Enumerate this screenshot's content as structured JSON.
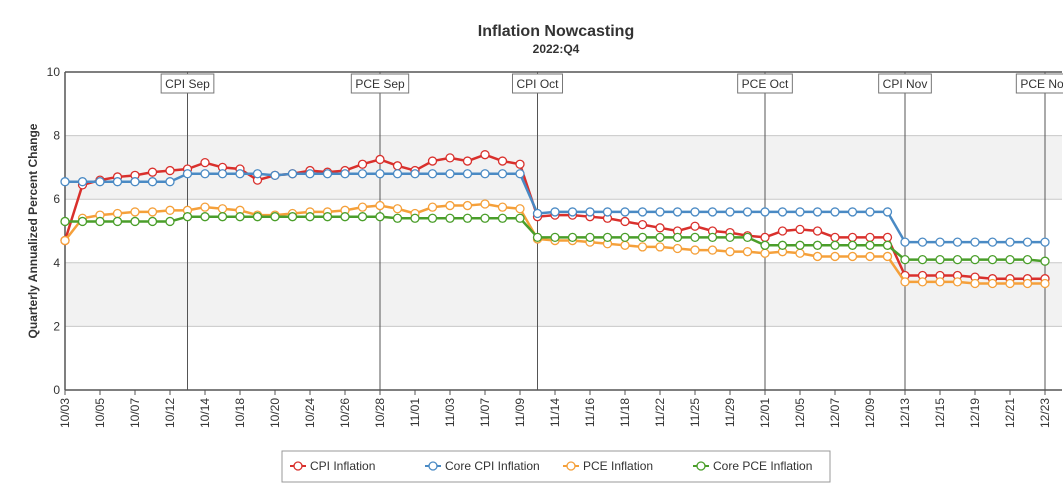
{
  "chart_data": {
    "type": "line",
    "title": "Inflation Nowcasting",
    "subtitle": "2022:Q4",
    "y_label": "Quarterly Annualized Percent Change",
    "categories": [
      "10/03",
      null,
      "10/05",
      null,
      "10/07",
      null,
      "10/12",
      null,
      "10/14",
      null,
      "10/18",
      null,
      "10/20",
      null,
      "10/24",
      null,
      "10/26",
      null,
      "10/28",
      null,
      "11/01",
      null,
      "11/03",
      null,
      "11/07",
      null,
      "11/09",
      null,
      "11/14",
      null,
      "11/16",
      null,
      "11/18",
      null,
      "11/22",
      null,
      "11/25",
      null,
      "11/29",
      null,
      "12/01",
      null,
      "12/05",
      null,
      "12/07",
      null,
      "12/09",
      null,
      "12/13",
      null,
      "12/15",
      null,
      "12/19",
      null,
      "12/21",
      null,
      "12/23"
    ],
    "series": [
      {
        "name": "CPI Inflation",
        "color": "#d9302c",
        "values": [
          4.7,
          6.45,
          6.6,
          6.7,
          6.75,
          6.85,
          6.9,
          6.95,
          7.15,
          7.0,
          6.95,
          6.6,
          6.75,
          6.8,
          6.9,
          6.85,
          6.9,
          7.1,
          7.25,
          7.05,
          6.9,
          7.2,
          7.3,
          7.2,
          7.4,
          7.2,
          7.1,
          5.45,
          5.5,
          5.5,
          5.45,
          5.4,
          5.3,
          5.2,
          5.1,
          5.0,
          5.15,
          5.0,
          4.95,
          4.85,
          4.8,
          5.0,
          5.05,
          5.0,
          4.8,
          4.8,
          4.8,
          4.8,
          3.6,
          3.6,
          3.6,
          3.6,
          3.55,
          3.5,
          3.5,
          3.5,
          3.5
        ]
      },
      {
        "name": "Core CPI Inflation",
        "color": "#4a8ac4",
        "values": [
          6.55,
          6.55,
          6.55,
          6.55,
          6.55,
          6.55,
          6.55,
          6.8,
          6.8,
          6.8,
          6.8,
          6.8,
          6.75,
          6.8,
          6.8,
          6.8,
          6.8,
          6.8,
          6.8,
          6.8,
          6.8,
          6.8,
          6.8,
          6.8,
          6.8,
          6.8,
          6.8,
          5.55,
          5.6,
          5.6,
          5.6,
          5.6,
          5.6,
          5.6,
          5.6,
          5.6,
          5.6,
          5.6,
          5.6,
          5.6,
          5.6,
          5.6,
          5.6,
          5.6,
          5.6,
          5.6,
          5.6,
          5.6,
          4.65,
          4.65,
          4.65,
          4.65,
          4.65,
          4.65,
          4.65,
          4.65,
          4.65
        ]
      },
      {
        "name": "PCE Inflation",
        "color": "#f5a03a",
        "values": [
          4.7,
          5.4,
          5.5,
          5.55,
          5.6,
          5.6,
          5.65,
          5.65,
          5.75,
          5.7,
          5.65,
          5.5,
          5.5,
          5.55,
          5.6,
          5.6,
          5.65,
          5.75,
          5.8,
          5.7,
          5.55,
          5.75,
          5.8,
          5.8,
          5.85,
          5.75,
          5.7,
          4.75,
          4.7,
          4.7,
          4.65,
          4.6,
          4.55,
          4.5,
          4.5,
          4.45,
          4.4,
          4.4,
          4.35,
          4.35,
          4.3,
          4.35,
          4.3,
          4.2,
          4.2,
          4.2,
          4.2,
          4.2,
          3.4,
          3.4,
          3.4,
          3.4,
          3.35,
          3.35,
          3.35,
          3.35,
          3.35
        ]
      },
      {
        "name": "Core PCE Inflation",
        "color": "#4a9e2a",
        "values": [
          5.3,
          5.3,
          5.3,
          5.3,
          5.3,
          5.3,
          5.3,
          5.45,
          5.45,
          5.45,
          5.45,
          5.45,
          5.45,
          5.45,
          5.45,
          5.45,
          5.45,
          5.45,
          5.45,
          5.4,
          5.4,
          5.4,
          5.4,
          5.4,
          5.4,
          5.4,
          5.4,
          4.8,
          4.8,
          4.8,
          4.8,
          4.8,
          4.8,
          4.8,
          4.8,
          4.8,
          4.8,
          4.8,
          4.8,
          4.8,
          4.55,
          4.55,
          4.55,
          4.55,
          4.55,
          4.55,
          4.55,
          4.55,
          4.1,
          4.1,
          4.1,
          4.1,
          4.1,
          4.1,
          4.1,
          4.1,
          4.05
        ]
      }
    ],
    "ylim": [
      0,
      10
    ],
    "yticks": [
      0,
      2,
      4,
      6,
      8,
      10
    ],
    "grid": true,
    "plot_bands": [
      {
        "from": 2,
        "to": 4
      },
      {
        "from": 6,
        "to": 8
      }
    ],
    "plot_lines": [
      {
        "label": "CPI Sep",
        "index": 7
      },
      {
        "label": "PCE Sep",
        "index": 18
      },
      {
        "label": "CPI Oct",
        "index": 27
      },
      {
        "label": "PCE Oct",
        "index": 40
      },
      {
        "label": "CPI Nov",
        "index": 48
      },
      {
        "label": "PCE Nov",
        "index": 56
      }
    ],
    "legend": "bottom"
  }
}
